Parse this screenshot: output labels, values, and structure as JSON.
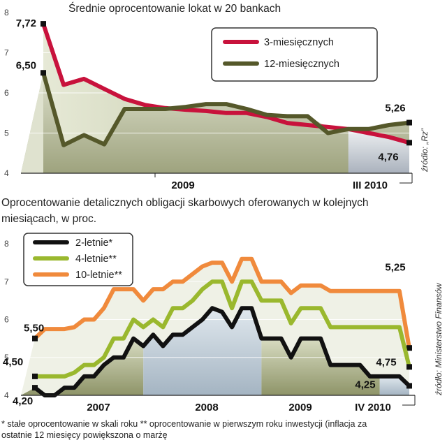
{
  "chart_data": [
    {
      "type": "line",
      "title": "Średnie oprocentowanie lokat w 20 bankach",
      "xlabel": "",
      "ylabel": "",
      "ylim": [
        4,
        8
      ],
      "yticks": [
        "4",
        "5",
        "6",
        "7",
        "8"
      ],
      "x_tick_labels": [
        "2009",
        "III 2010"
      ],
      "source": "źródło: „Rz”",
      "legend_position": "top-right",
      "colors": {
        "3m": "#c8123c",
        "12m": "#55582a"
      },
      "series": [
        {
          "name": "3-miesięcznych",
          "values": [
            7.72,
            6.2,
            6.35,
            6.1,
            5.85,
            5.7,
            5.62,
            5.58,
            5.55,
            5.5,
            5.5,
            5.4,
            5.25,
            5.2,
            5.15,
            5.1,
            5.0,
            4.9,
            4.76
          ]
        },
        {
          "name": "12-miesięcznych",
          "values": [
            6.5,
            4.7,
            4.95,
            4.72,
            5.6,
            5.6,
            5.6,
            5.65,
            5.72,
            5.72,
            5.6,
            5.45,
            5.42,
            5.42,
            5.0,
            5.1,
            5.1,
            5.2,
            5.26
          ]
        }
      ],
      "labels": {
        "start_3m": "7,72",
        "start_12m": "6,50",
        "end_12m": "5,26",
        "end_3m": "4,76"
      }
    },
    {
      "type": "line",
      "title": "Oprocentowanie detalicznych obligacji skarbowych oferowanych w kolejnych miesiącach, w proc.",
      "xlabel": "",
      "ylabel": "",
      "ylim": [
        4,
        8
      ],
      "yticks": [
        "4",
        "5",
        "6",
        "7",
        "8"
      ],
      "x_tick_labels": [
        "2007",
        "2008",
        "2009",
        "IV 2010"
      ],
      "source": "źródło: Ministerstwo Finansów",
      "legend_position": "top-left",
      "colors": {
        "y2": "#111111",
        "y4": "#9ab82e",
        "y10": "#f08a3c"
      },
      "series": [
        {
          "name": "2-letnie*",
          "values": [
            4.2,
            4.0,
            4.0,
            4.2,
            4.2,
            4.5,
            4.5,
            4.8,
            5.0,
            5.0,
            5.5,
            5.3,
            5.6,
            5.3,
            5.6,
            5.6,
            5.8,
            6.0,
            6.3,
            6.2,
            5.8,
            6.3,
            6.3,
            5.5,
            5.5,
            5.5,
            5.0,
            5.5,
            5.5,
            5.5,
            4.8,
            4.8,
            4.8,
            4.8,
            4.5,
            4.5,
            4.5,
            4.5,
            4.25
          ]
        },
        {
          "name": "4-letnie**",
          "values": [
            4.5,
            4.5,
            4.5,
            4.5,
            4.6,
            4.8,
            4.8,
            5.0,
            5.5,
            5.5,
            6.0,
            5.8,
            6.0,
            5.8,
            6.3,
            6.3,
            6.5,
            6.8,
            7.0,
            7.0,
            6.3,
            7.0,
            7.0,
            6.5,
            6.5,
            6.5,
            5.9,
            6.3,
            6.3,
            6.3,
            5.8,
            5.8,
            5.8,
            5.8,
            5.8,
            5.8,
            5.8,
            5.8,
            4.75
          ]
        },
        {
          "name": "10-letnie**",
          "values": [
            5.5,
            5.75,
            5.75,
            5.75,
            5.8,
            6.0,
            6.0,
            6.3,
            6.8,
            6.8,
            6.8,
            6.5,
            6.8,
            6.8,
            7.0,
            7.0,
            7.2,
            7.4,
            7.5,
            7.5,
            7.0,
            7.6,
            7.6,
            7.0,
            7.0,
            7.0,
            6.7,
            6.9,
            6.9,
            6.9,
            6.75,
            6.75,
            6.75,
            6.75,
            6.75,
            6.75,
            6.75,
            6.75,
            5.25
          ]
        }
      ],
      "labels": {
        "start_10y": "5,50",
        "start_4y": "4,50",
        "start_2y": "4,20",
        "end_10y": "5,25",
        "end_4y": "4,75",
        "end_2y": "4,25"
      }
    }
  ],
  "footnote": {
    "line1": "* stałe oprocentowanie w skali roku   ** oprocentowanie w pierwszym roku inwestycji (inflacja za",
    "line2": "ostatnie 12 miesięcy powiększona o marżę"
  }
}
